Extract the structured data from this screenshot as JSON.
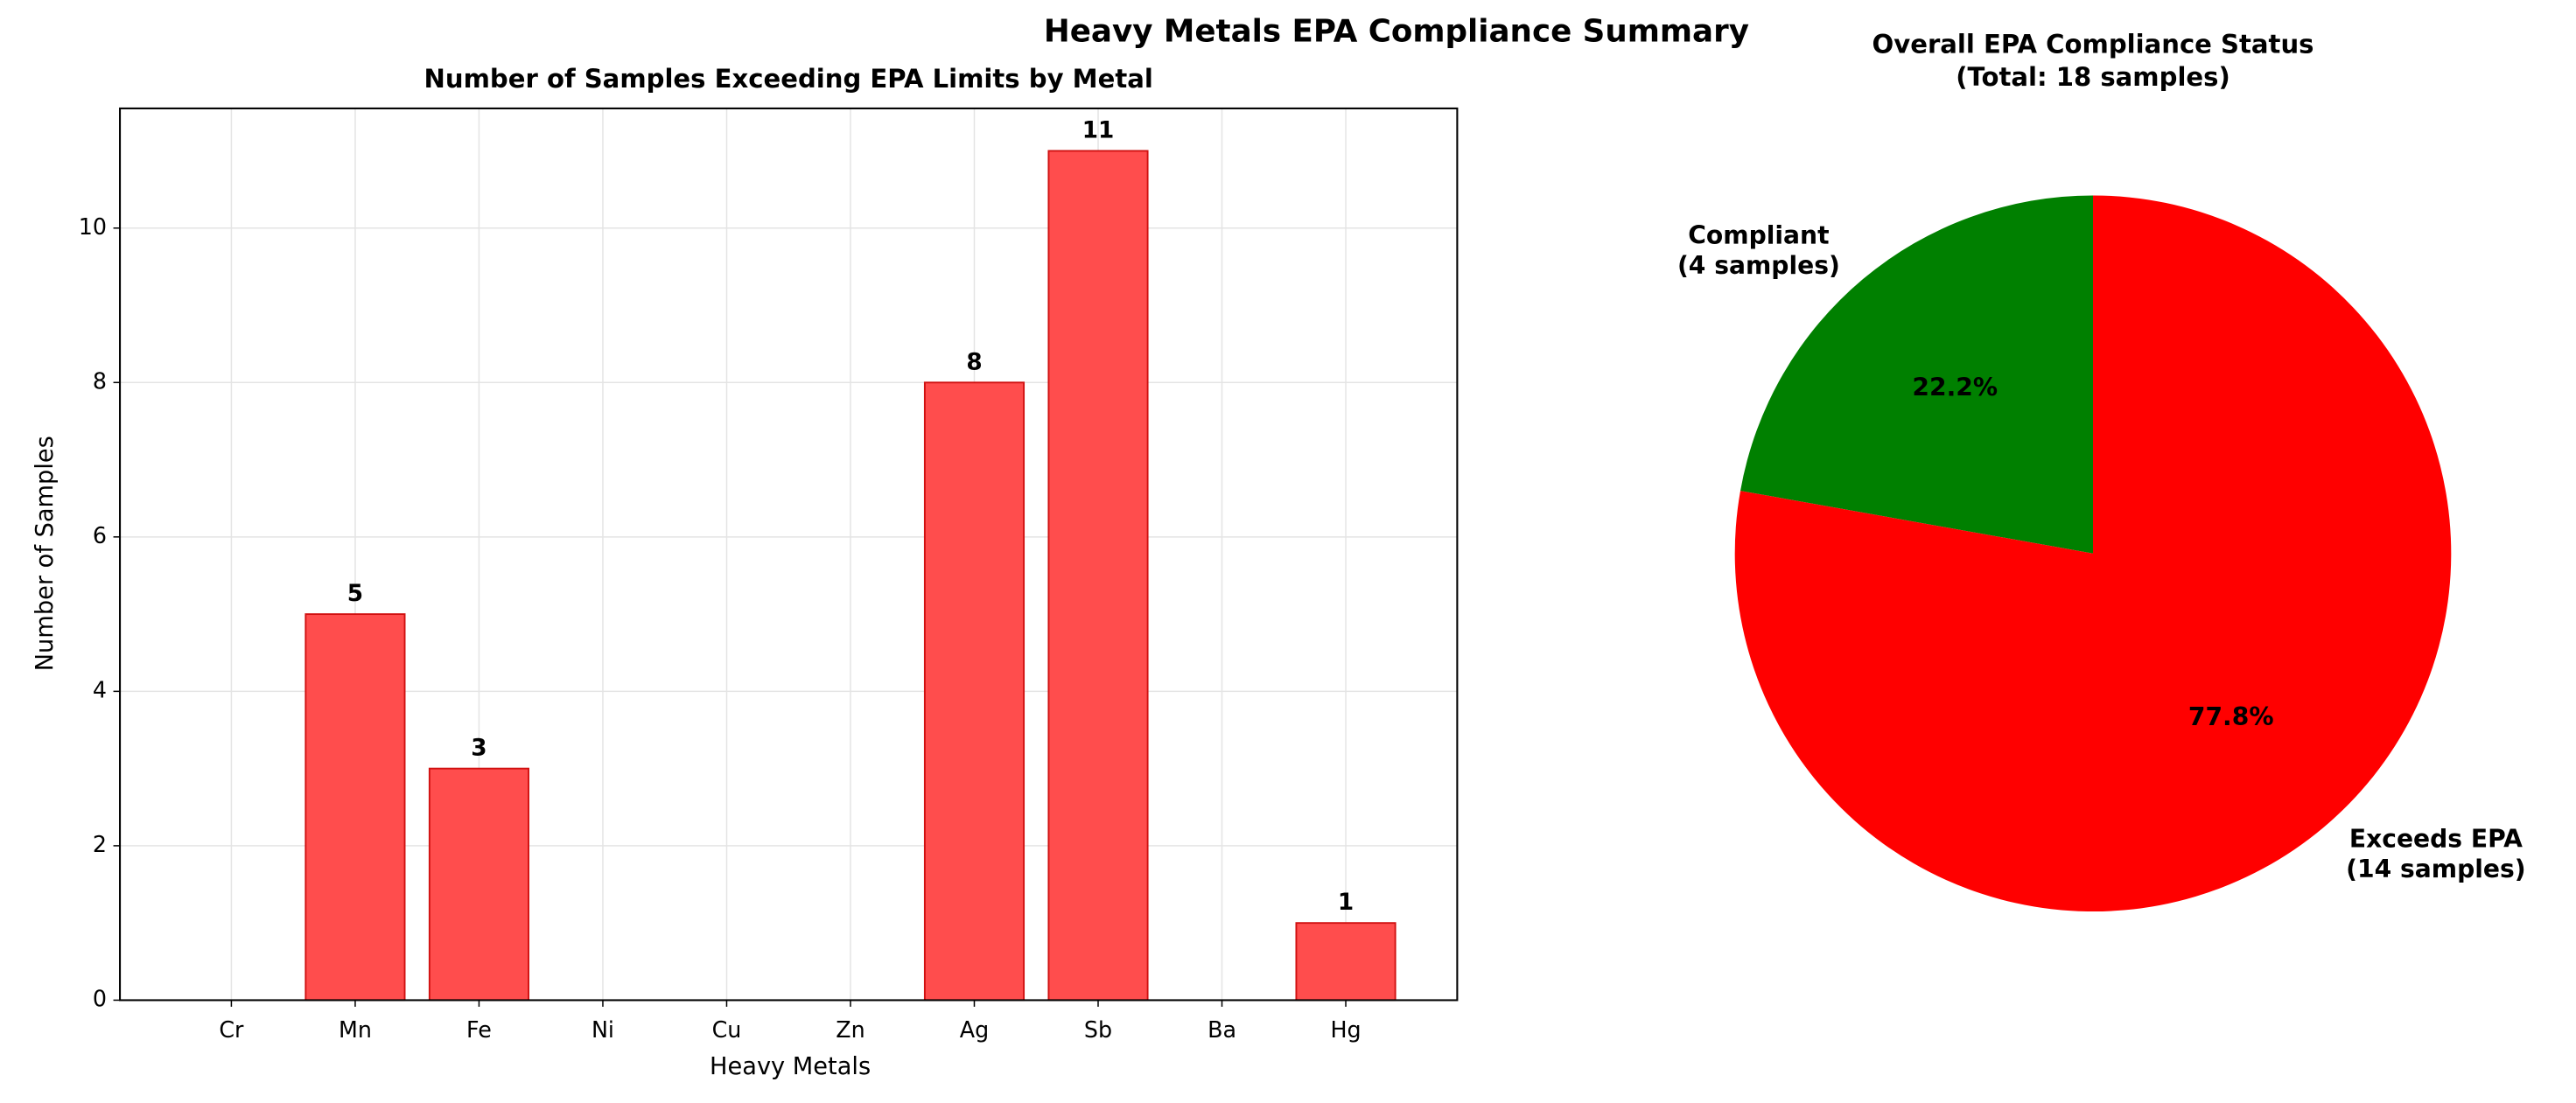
{
  "title": "Heavy Metals EPA Compliance Summary",
  "chart_data": [
    {
      "type": "bar",
      "title": "Number of Samples Exceeding EPA Limits by Metal",
      "x_label": "Heavy Metals",
      "y_label": "Number of Samples",
      "categories": [
        "Cr",
        "Mn",
        "Fe",
        "Ni",
        "Cu",
        "Zn",
        "Ag",
        "Sb",
        "Ba",
        "Hg"
      ],
      "values": [
        0,
        5,
        3,
        0,
        0,
        0,
        8,
        11,
        0,
        1
      ],
      "color": "#ff4d4d",
      "edge_color": "#d01010",
      "ylim": [
        0,
        11.55
      ],
      "yticks": [
        0,
        2,
        4,
        6,
        8,
        10
      ],
      "grid": true
    },
    {
      "type": "pie",
      "title": [
        "Overall EPA Compliance Status",
        "(Total: 18 samples)"
      ],
      "categories": [
        [
          "Compliant",
          "(4 samples)"
        ],
        [
          "Exceeds EPA",
          "(14 samples)"
        ]
      ],
      "values": [
        22.2,
        77.8
      ],
      "value_labels": [
        "22.2%",
        "77.8%"
      ],
      "colors": [
        "#008000",
        "#ff0000"
      ],
      "start_angle": 90
    }
  ]
}
